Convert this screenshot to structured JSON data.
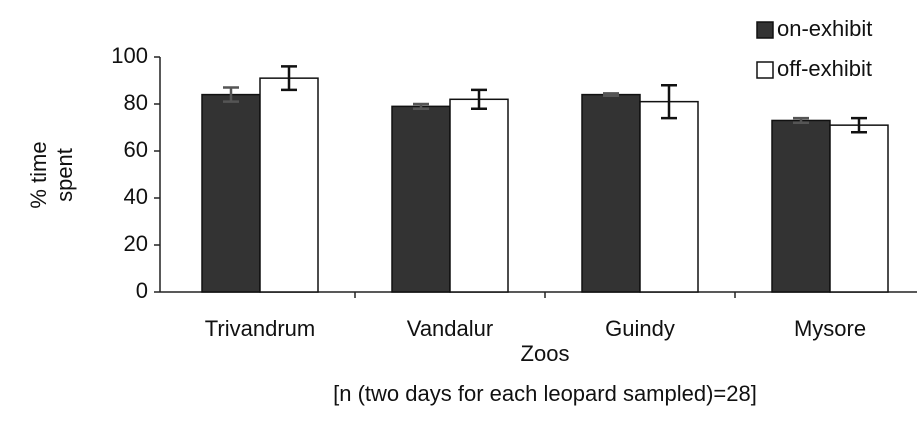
{
  "chart_data": {
    "type": "bar",
    "ylabel": [
      "% time",
      "spent"
    ],
    "xlabel": "Zoos",
    "note": "[n (two days for each leopard sampled)=28]",
    "categories": [
      "Trivandrum",
      "Vandalur",
      "Guindy",
      "Mysore"
    ],
    "series": [
      {
        "name": "on-exhibit",
        "color": "#333333",
        "values": [
          84,
          79,
          84,
          73
        ],
        "errors": [
          3,
          1,
          0.5,
          1
        ]
      },
      {
        "name": "off-exhibit",
        "color": "#ffffff",
        "values": [
          91,
          82,
          81,
          71
        ],
        "errors": [
          5,
          4,
          7,
          3
        ]
      }
    ],
    "ylim": [
      0,
      100
    ],
    "yticks": [
      0,
      20,
      40,
      60,
      80,
      100
    ],
    "legend": "top-right"
  }
}
